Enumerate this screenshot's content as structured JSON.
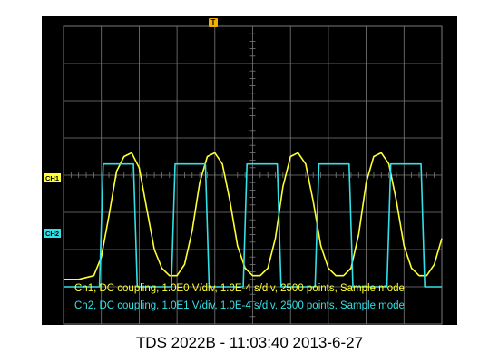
{
  "scope": {
    "trigger_marker": "T",
    "ch1_marker": "CH1",
    "ch2_marker": "CH2",
    "ch1_info": "Ch1, DC coupling, 1.0E0 V/div, 1.0E-4 s/div, 2500 points, Sample mode",
    "ch2_info": "Ch2, DC coupling, 1.0E1 V/div, 1.0E-4 s/div, 2500 points, Sample mode",
    "ch1_color": "#ffff33",
    "ch2_color": "#33e0e6",
    "trigger_color": "#f2b100"
  },
  "caption": "TDS 2022B - 11:03:40   2013-6-27",
  "chart_data": {
    "type": "line",
    "grid": true,
    "x_divisions": 10,
    "y_divisions": 8,
    "series": [
      {
        "shape": "smooth periodic pulse",
        "x": [
          0.0,
          0.4,
          0.8,
          1.0,
          1.2,
          1.4,
          1.6,
          1.8,
          2.0,
          2.2,
          2.4,
          2.6,
          2.8,
          3.0,
          3.2,
          3.4,
          3.6,
          3.8,
          4.0,
          4.2,
          4.4,
          4.6,
          4.8,
          5.0,
          5.2,
          5.4,
          5.6,
          5.8,
          6.0,
          6.2,
          6.4,
          6.6,
          6.8,
          7.0,
          7.2,
          7.4,
          7.6,
          7.8,
          8.0,
          8.2,
          8.4,
          8.6,
          8.8,
          9.0,
          9.2,
          9.4,
          9.6,
          9.8,
          10.0
        ],
        "y": [
          1.2,
          1.2,
          1.3,
          1.8,
          2.9,
          4.1,
          4.5,
          4.6,
          4.2,
          3.1,
          2.0,
          1.5,
          1.3,
          1.3,
          1.6,
          2.5,
          3.8,
          4.5,
          4.6,
          4.3,
          3.3,
          2.1,
          1.5,
          1.3,
          1.3,
          1.5,
          2.3,
          3.7,
          4.5,
          4.6,
          4.3,
          3.3,
          2.1,
          1.5,
          1.3,
          1.3,
          1.5,
          2.4,
          3.8,
          4.5,
          4.6,
          4.3,
          3.3,
          2.1,
          1.5,
          1.3,
          1.3,
          1.6,
          2.3
        ]
      },
      {
        "shape": "square wave",
        "x": [
          0.0,
          0.95,
          1.05,
          1.85,
          1.95,
          2.85,
          2.95,
          3.75,
          3.85,
          4.75,
          4.85,
          5.65,
          5.75,
          6.65,
          6.75,
          7.55,
          7.65,
          8.55,
          8.65,
          9.45,
          9.55,
          10.0
        ],
        "y": [
          1.0,
          1.0,
          4.3,
          4.3,
          1.0,
          1.0,
          4.3,
          4.3,
          1.0,
          1.0,
          4.3,
          4.3,
          1.0,
          1.0,
          4.3,
          4.3,
          1.0,
          1.0,
          4.3,
          4.3,
          1.0,
          1.0
        ]
      }
    ]
  }
}
